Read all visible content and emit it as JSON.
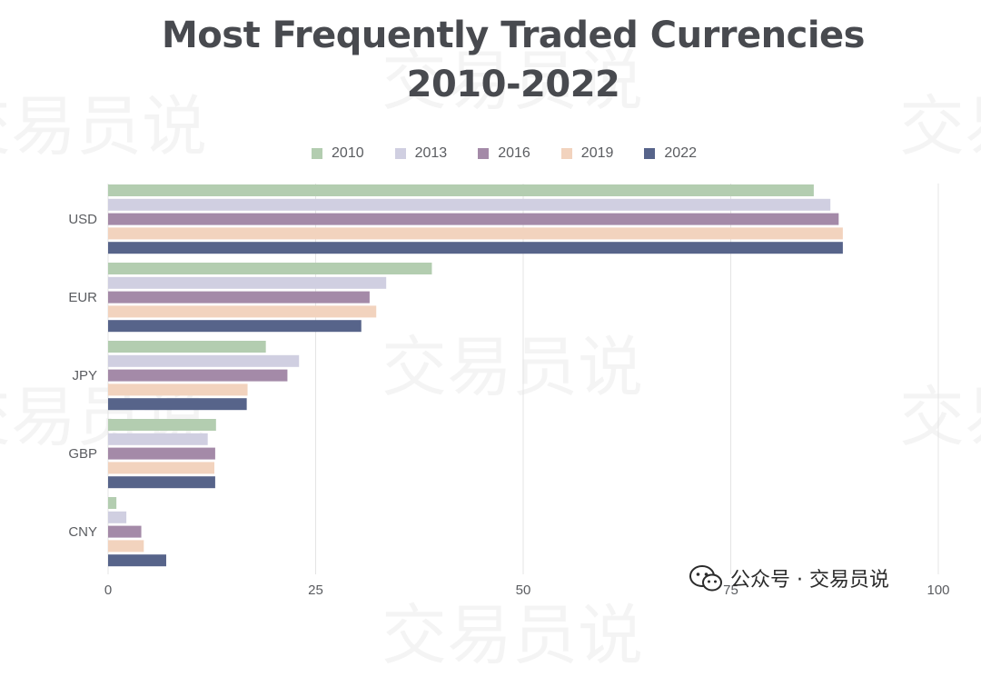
{
  "title": {
    "line1": "Most Frequently Traded Currencies",
    "line2": "2010-2022"
  },
  "watermark": {
    "background_text": "交易员说",
    "credit": "公众号 · 交易员说",
    "icon": "wechat-icon"
  },
  "colors": {
    "2010": "#b3cdb0",
    "2013": "#d0cfe1",
    "2016": "#a48aa8",
    "2019": "#f2d3be",
    "2022": "#57648a"
  },
  "chart_data": {
    "type": "bar",
    "orientation": "horizontal",
    "categories": [
      "USD",
      "EUR",
      "JPY",
      "GBP",
      "CNY"
    ],
    "series": [
      {
        "name": "2010",
        "values": [
          85,
          39,
          19,
          13,
          1
        ]
      },
      {
        "name": "2013",
        "values": [
          87,
          33.5,
          23,
          12,
          2.2
        ]
      },
      {
        "name": "2016",
        "values": [
          88,
          31.5,
          21.6,
          12.9,
          4
        ]
      },
      {
        "name": "2019",
        "values": [
          88.5,
          32.3,
          16.8,
          12.8,
          4.3
        ]
      },
      {
        "name": "2022",
        "values": [
          88.5,
          30.5,
          16.7,
          12.9,
          7
        ]
      }
    ],
    "x_ticks": [
      "0",
      "25",
      "50",
      "75",
      "100"
    ],
    "xlim": [
      0,
      100
    ],
    "grid": true,
    "legend_position": "top-center"
  }
}
